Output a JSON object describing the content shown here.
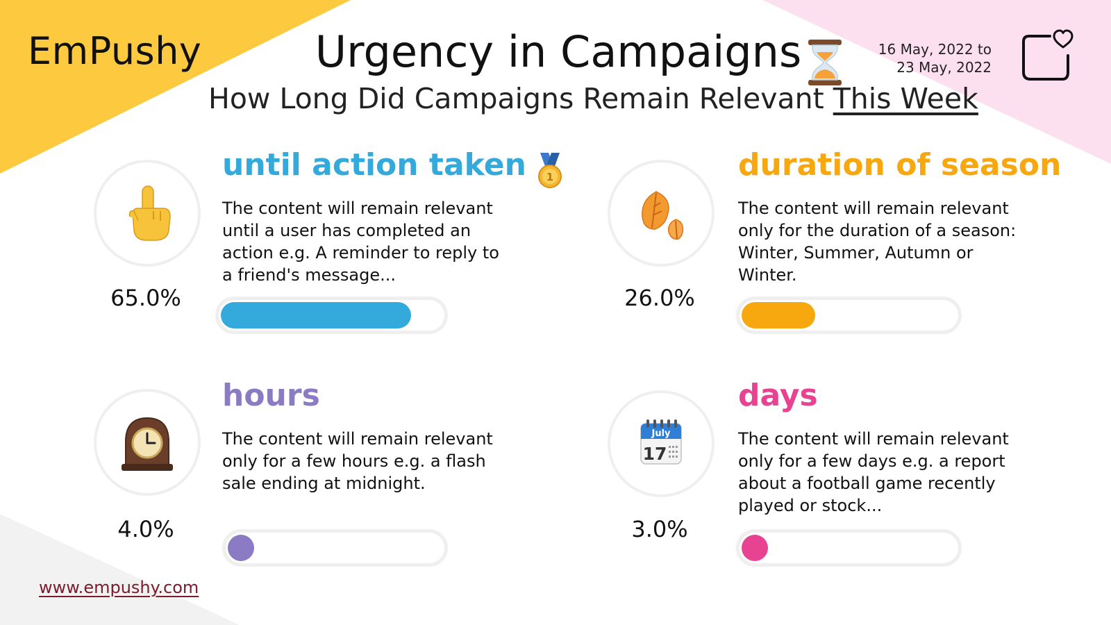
{
  "header": {
    "brand": "EmPushy",
    "title": "Urgency in Campaigns",
    "subtitle_main": "How Long Did Campaigns Remain Relevant",
    "subtitle_emphasis": "This Week",
    "date_line1": "16 May, 2022 to",
    "date_line2": "23 May, 2022"
  },
  "colors": {
    "corner_yellow": "#fdc93f",
    "corner_pink": "#fde0ef",
    "corner_grey": "#f2f2f2",
    "until_action_taken": "#34aadc",
    "duration_of_season": "#f7a80f",
    "hours": "#8a7bc4",
    "days": "#e84393",
    "track": "#efefef"
  },
  "chart_data": {
    "type": "bar",
    "title": "Urgency in Campaigns",
    "subtitle": "How Long Did Campaigns Remain Relevant This Week",
    "categories": [
      "until action taken",
      "duration of season",
      "hours",
      "days"
    ],
    "values": [
      65.0,
      26.0,
      4.0,
      3.0
    ],
    "unit": "%",
    "value_labels": [
      "65.0%",
      "26.0%",
      "4.0%",
      "3.0%"
    ],
    "ylim": [
      0,
      100
    ],
    "items": [
      {
        "key": "until-action-taken",
        "label": "until action taken",
        "icon": "pointing-hand-icon",
        "badge": "first-place-medal-icon",
        "description": "The content will remain relevant until a user has completed an action e.g. A reminder to reply to a friend's message...",
        "value": 65.0,
        "value_label": "65.0%",
        "color": "#34aadc"
      },
      {
        "key": "duration-of-season",
        "label": "duration of season",
        "icon": "falling-leaves-icon",
        "description": "The content will remain relevant only for the duration of a season: Winter, Summer, Autumn or Winter.",
        "value": 26.0,
        "value_label": "26.0%",
        "color": "#f7a80f"
      },
      {
        "key": "hours",
        "label": "hours",
        "icon": "mantelpiece-clock-icon",
        "description": "The content will remain relevant only for a few hours e.g. a flash sale ending at midnight.",
        "value": 4.0,
        "value_label": "4.0%",
        "color": "#8a7bc4"
      },
      {
        "key": "days",
        "label": "days",
        "icon": "calendar-icon",
        "calendar_month": "July",
        "calendar_day": "17",
        "description": "The content will remain relevant only for a few days e.g. a report about a football game recently played or stock...",
        "value": 3.0,
        "value_label": "3.0%",
        "color": "#e84393"
      }
    ]
  },
  "footer": {
    "url": "www.empushy.com"
  }
}
